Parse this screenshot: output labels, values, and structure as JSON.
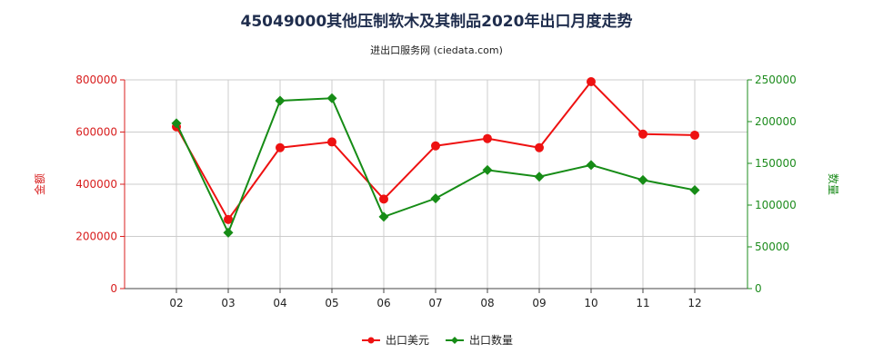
{
  "title": "45049000其他压制软木及其制品2020年出口月度走势",
  "subtitle": "进出口服务网 (ciedata.com)",
  "colors": {
    "series1": "#ee1111",
    "series2": "#168c16",
    "grid": "#cccccc",
    "axis_left": "#d81e1e",
    "axis_right": "#1e8c1e"
  },
  "chart_data": {
    "type": "line",
    "title": "45049000其他压制软木及其制品2020年出口月度走势",
    "subtitle": "进出口服务网 (ciedata.com)",
    "categories": [
      "02",
      "03",
      "04",
      "05",
      "06",
      "07",
      "08",
      "09",
      "10",
      "11",
      "12"
    ],
    "x_extent": [
      "01",
      "12"
    ],
    "ylabel_left": "金额",
    "ylabel_right": "数量",
    "ylim_left": [
      0,
      800000
    ],
    "ylim_right": [
      0,
      250000
    ],
    "yticks_left": [
      "0",
      "200000",
      "400000",
      "600000",
      "800000"
    ],
    "yticks_right": [
      "0",
      "50000",
      "100000",
      "150000",
      "200000",
      "250000"
    ],
    "grid": true,
    "legend_position": "bottom",
    "series": [
      {
        "name": "出口美元",
        "axis": "left",
        "marker": "circle",
        "values": [
          620000,
          265000,
          540000,
          562000,
          343000,
          547000,
          575000,
          540000,
          793000,
          592000,
          588000
        ]
      },
      {
        "name": "出口数量",
        "axis": "right",
        "marker": "diamond",
        "values": [
          198000,
          67000,
          225000,
          228000,
          86000,
          108000,
          142000,
          134000,
          148000,
          130000,
          118000
        ]
      }
    ]
  }
}
